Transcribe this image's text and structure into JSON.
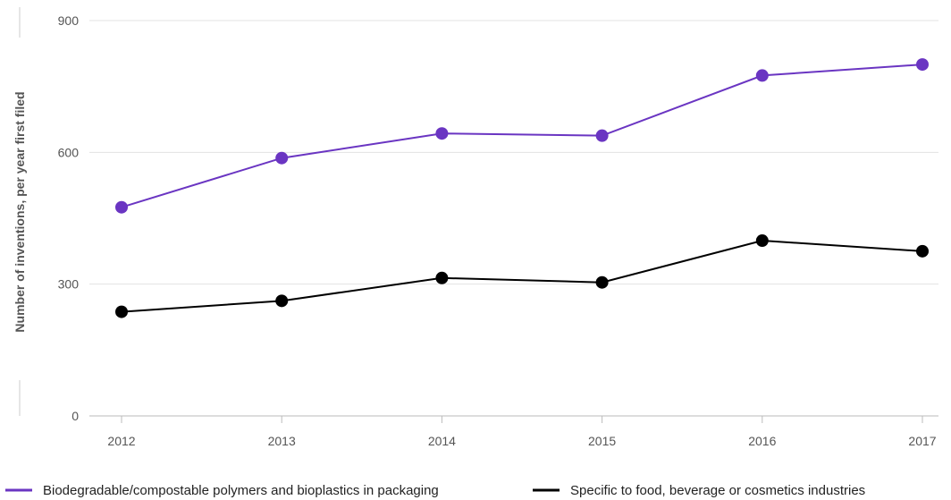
{
  "chart_data": {
    "type": "line",
    "title": "",
    "xlabel": "",
    "ylabel": "Number of inventions, per year first filed",
    "categories": [
      "2012",
      "2013",
      "2014",
      "2015",
      "2016",
      "2017"
    ],
    "ylim": [
      0,
      900
    ],
    "yticks": [
      "0",
      "300",
      "600",
      "900"
    ],
    "grid": true,
    "legend_position": "bottom",
    "series": [
      {
        "name": "Biodegradable/compostable polymers and bioplastics in packaging",
        "color": "#6a35c2",
        "values": [
          475,
          587,
          643,
          638,
          775,
          800
        ]
      },
      {
        "name": "Specific to food, beverage or cosmetics industries",
        "color": "#000000",
        "values": [
          237,
          262,
          314,
          304,
          399,
          375
        ]
      }
    ]
  }
}
